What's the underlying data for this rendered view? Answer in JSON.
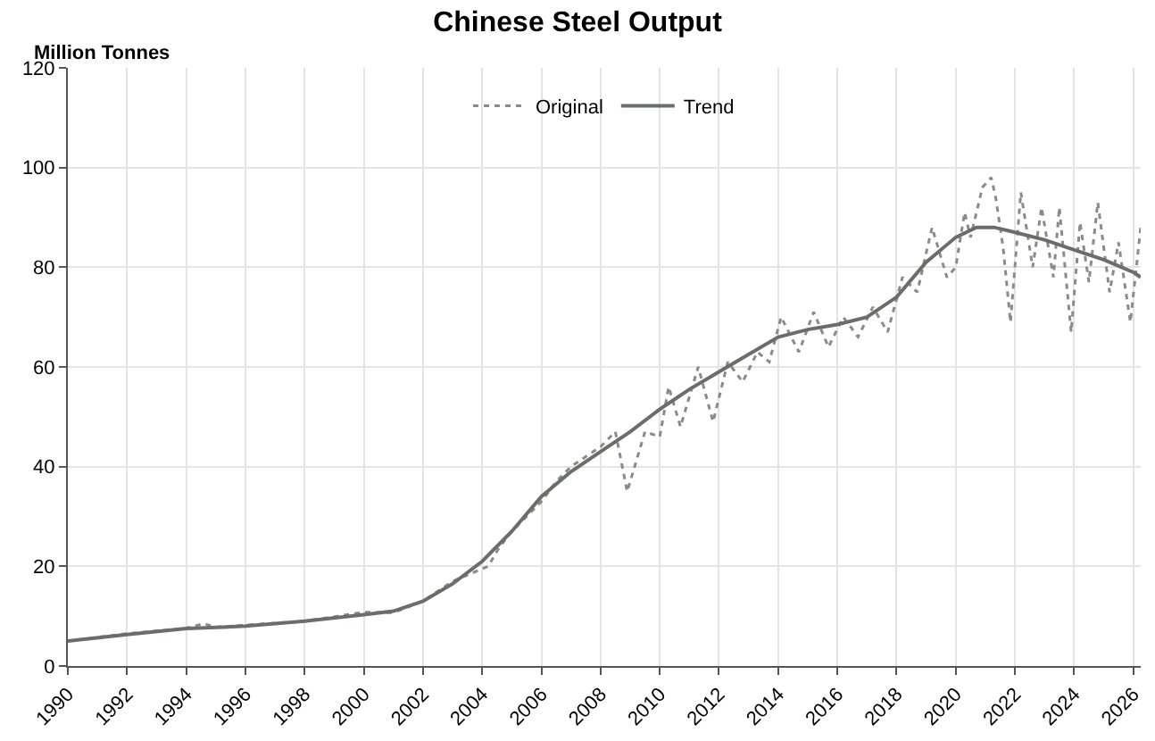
{
  "chart_data": {
    "type": "line",
    "title": "Chinese Steel Output",
    "ylabel": "Million Tonnes",
    "xlim": [
      1990,
      2026.25
    ],
    "xticks": [
      1990,
      1992,
      1994,
      1996,
      1998,
      2000,
      2002,
      2004,
      2006,
      2008,
      2010,
      2012,
      2014,
      2016,
      2018,
      2020,
      2022,
      2024,
      2026
    ],
    "ylim": [
      0,
      120
    ],
    "yticks": [
      0,
      20,
      40,
      60,
      80,
      100,
      120
    ],
    "grid": true,
    "legend": "top",
    "marker": "none",
    "series": [
      {
        "name": "Original",
        "color": "#8a8a8a",
        "line_style": "dotted",
        "x": [
          1990,
          1992,
          1994,
          1994.6,
          1995,
          1996,
          1998,
          2000,
          2001,
          2002,
          2003,
          2004.2,
          2004.6,
          2005,
          2005.5,
          2006,
          2006.5,
          2007,
          2007.5,
          2008,
          2008.5,
          2008.9,
          2009.5,
          2010,
          2010.3,
          2010.7,
          2011.3,
          2011.8,
          2012.3,
          2012.8,
          2013.3,
          2013.7,
          2014.1,
          2014.7,
          2015.2,
          2015.7,
          2016.2,
          2016.7,
          2017.2,
          2017.7,
          2018.2,
          2018.7,
          2019.2,
          2019.7,
          2020,
          2020.3,
          2020.5,
          2020.9,
          2021.2,
          2021.35,
          2021.6,
          2021.85,
          2022.2,
          2022.6,
          2022.9,
          2023.3,
          2023.5,
          2023.9,
          2024.2,
          2024.5,
          2024.8,
          2025.2,
          2025.5,
          2025.9,
          2026.25
        ],
        "values": [
          5,
          6.5,
          7.6,
          8.5,
          7.8,
          8.2,
          9,
          10.8,
          10.7,
          13,
          17,
          20,
          24,
          27,
          30,
          33,
          37,
          40,
          42,
          44,
          47,
          35,
          47,
          46,
          56,
          48,
          60,
          49,
          61,
          57,
          63,
          61,
          70,
          63,
          71,
          64,
          70,
          66,
          72,
          67,
          78,
          75,
          88,
          78,
          80,
          91,
          86,
          96,
          98,
          94,
          84,
          69,
          95,
          80,
          92,
          78,
          92,
          67,
          89,
          77,
          93,
          75,
          85,
          69,
          88
        ]
      },
      {
        "name": "Trend",
        "color": "#6b6e68",
        "line_style": "solid",
        "x": [
          1990,
          1992,
          1994,
          1996,
          1998,
          2000,
          2001,
          2002,
          2003,
          2004,
          2005,
          2006,
          2007,
          2008,
          2009,
          2010,
          2011,
          2012,
          2013,
          2014,
          2015,
          2016,
          2017,
          2018,
          2019,
          2020,
          2020.7,
          2021.3,
          2022,
          2023,
          2024,
          2025,
          2026,
          2026.25
        ],
        "values": [
          5,
          6.3,
          7.5,
          8,
          9,
          10.3,
          11,
          13,
          16.5,
          21,
          27,
          34,
          39,
          43,
          47,
          51.5,
          55.5,
          59,
          62.5,
          66,
          67.5,
          68.5,
          70,
          74,
          81,
          86,
          88,
          88,
          87,
          85.5,
          83.5,
          81.5,
          79,
          78
        ]
      }
    ]
  }
}
